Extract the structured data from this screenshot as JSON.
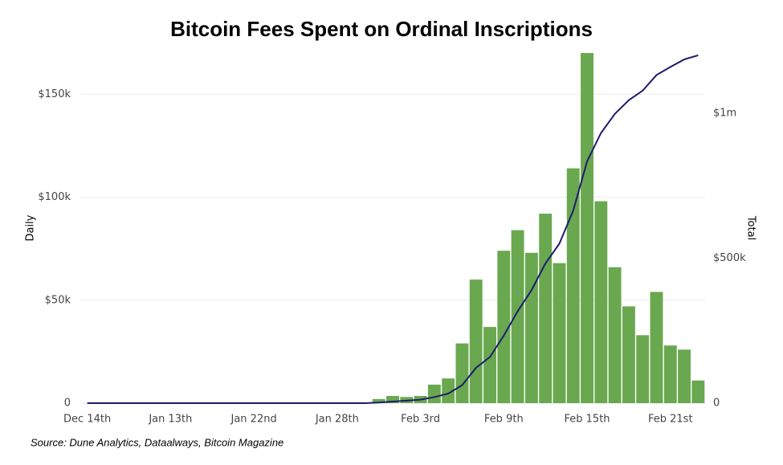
{
  "chart_data": {
    "type": "bar",
    "title": "Bitcoin Fees Spent on Ordinal Inscriptions",
    "source": "Source: Dune Analytics, Dataalways, Bitcoin Magazine",
    "ylabel": "Daily",
    "y2label": "Total",
    "categories": [
      "Dec 14th",
      null,
      null,
      null,
      null,
      null,
      "Jan 13th",
      null,
      null,
      null,
      null,
      null,
      "Jan 22nd",
      null,
      null,
      null,
      null,
      null,
      "Jan 28th",
      null,
      null,
      null,
      null,
      null,
      "Feb 3rd",
      null,
      null,
      null,
      null,
      null,
      "Feb 9th",
      null,
      null,
      null,
      null,
      null,
      "Feb 15th",
      null,
      null,
      null,
      null,
      null,
      "Feb 21st",
      null,
      null
    ],
    "series": [
      {
        "type": "bar",
        "axis": "y",
        "color": "#6aa84f",
        "values": [
          0,
          0,
          0,
          0,
          0,
          0,
          0,
          0,
          0,
          0,
          0,
          0,
          0,
          0,
          0,
          0,
          0,
          0,
          0,
          0,
          0,
          2000,
          3500,
          3000,
          3500,
          9000,
          12000,
          29000,
          60000,
          37000,
          74000,
          84000,
          73000,
          92000,
          68000,
          114000,
          170000,
          98000,
          66000,
          47000,
          33000,
          54000,
          28000,
          26000,
          11000
        ]
      },
      {
        "type": "line",
        "axis": "y2",
        "color": "#1c1c6e",
        "values": [
          0,
          0,
          0,
          0,
          0,
          0,
          0,
          0,
          0,
          0,
          0,
          0,
          0,
          0,
          0,
          0,
          0,
          0,
          0,
          0,
          0,
          2000,
          5500,
          8500,
          12000,
          21000,
          33000,
          62000,
          122000,
          159000,
          233000,
          317000,
          390000,
          482000,
          550000,
          664000,
          834000,
          932000,
          998000,
          1045000,
          1078000,
          1132000,
          1160000,
          1186000,
          1200000
        ]
      }
    ],
    "ylim": [
      0,
      170000
    ],
    "yticks": [
      0,
      {
        "value": 50000,
        "label": "$50k"
      },
      {
        "value": 100000,
        "label": "$100k"
      },
      {
        "value": 150000,
        "label": "$150k"
      }
    ],
    "y2lim": [
      0,
      1208000
    ],
    "y2ticks": [
      0,
      {
        "value": 500000,
        "label": "$500k"
      },
      {
        "value": 1000000,
        "label": "$1m"
      }
    ],
    "grid": true
  }
}
